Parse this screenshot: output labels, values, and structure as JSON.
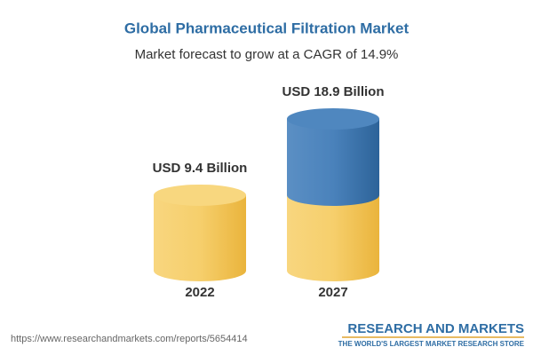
{
  "chart_data": {
    "type": "bar",
    "title": "Global Pharmaceutical Filtration Market",
    "subtitle": "Market forecast to grow at a CAGR of 14.9%",
    "categories": [
      "2022",
      "2027"
    ],
    "values": [
      9.4,
      18.9
    ],
    "value_labels": [
      "USD 9.4 Billion",
      "USD 18.9 Billion"
    ],
    "colors": [
      "#f2c254",
      "#3d76ae"
    ]
  },
  "footer": {
    "source_url": "https://www.researchandmarkets.com/reports/5654414",
    "brand": "RESEARCH AND MARKETS",
    "tagline": "THE WORLD'S LARGEST MARKET RESEARCH STORE"
  }
}
